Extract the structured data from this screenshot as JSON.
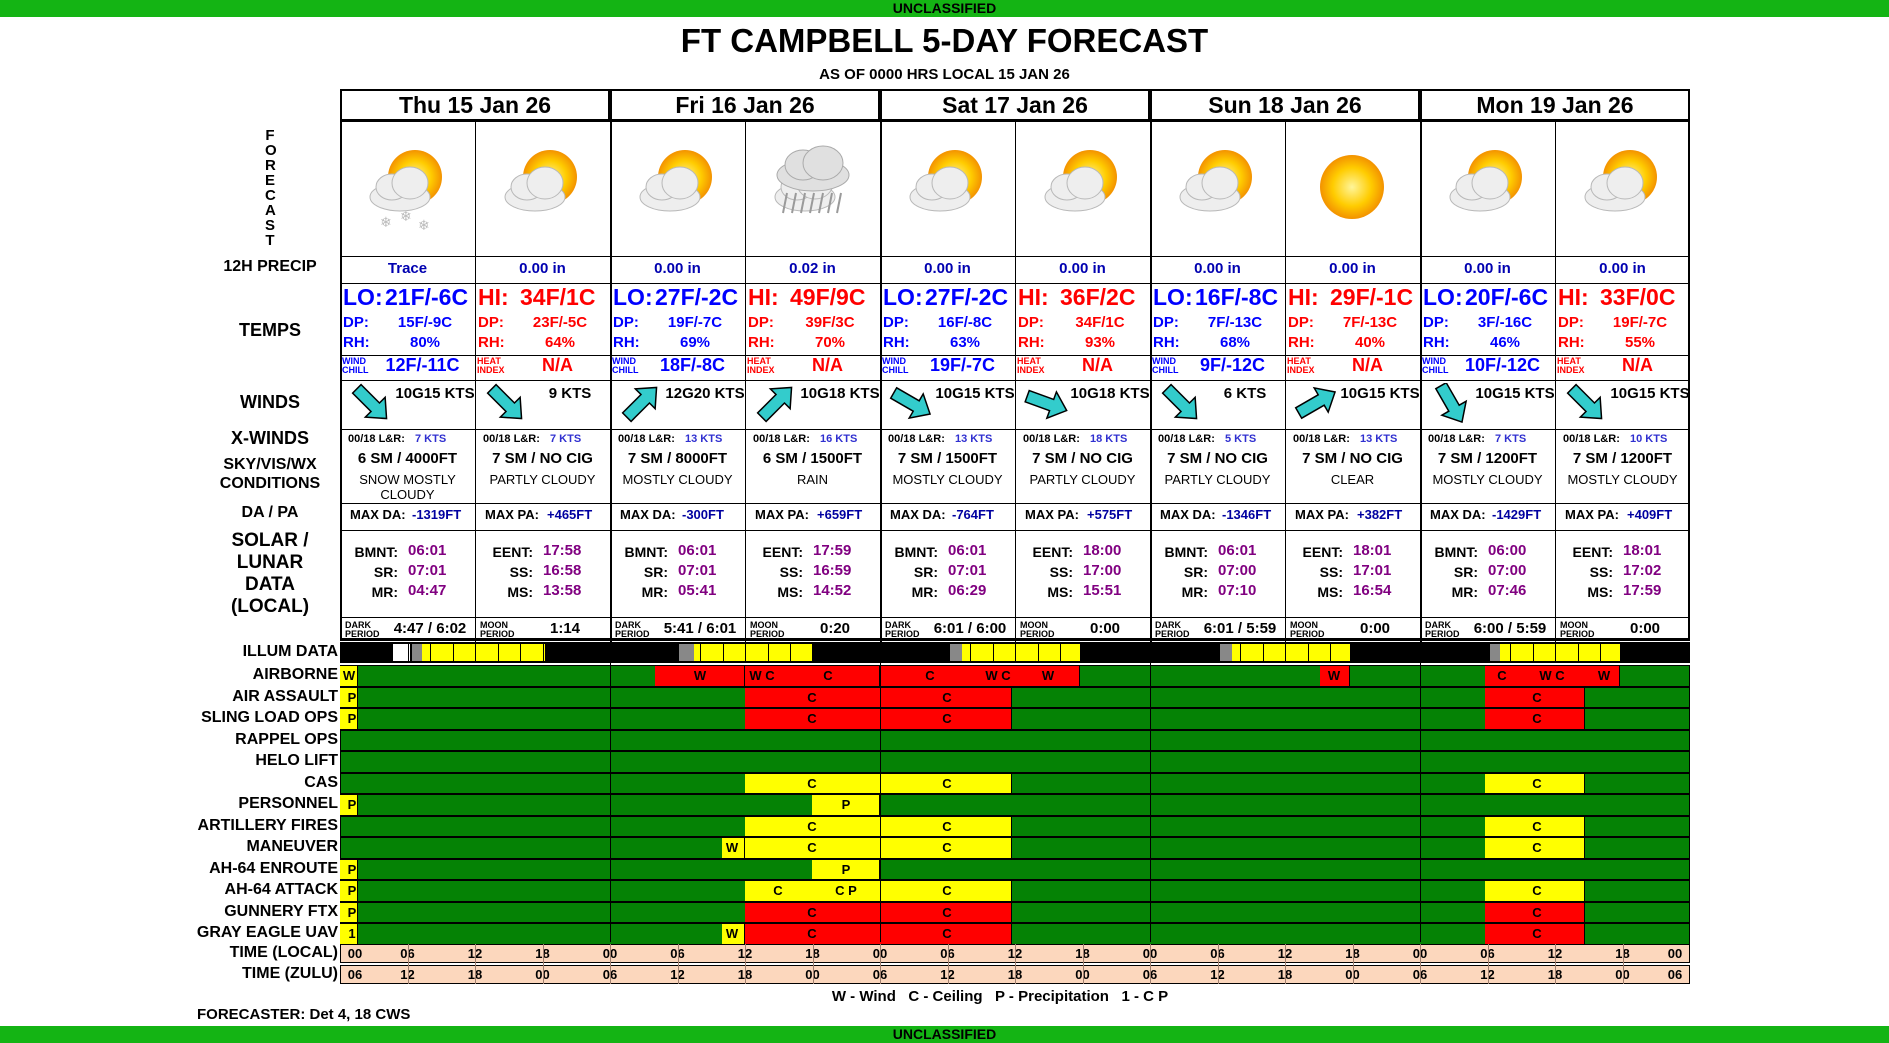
{
  "banner_top": "UNCLASSIFIED",
  "banner_bottom": "UNCLASSIFIED",
  "title": "FT CAMPBELL 5-DAY FORECAST",
  "as_of": "AS OF 0000 HRS LOCAL 15 JAN 26",
  "labels": {
    "forecast": "F O R E C A S T",
    "precip": "12H PRECIP",
    "temps": "TEMPS",
    "winds": "WINDS",
    "xwinds": "X-WINDS",
    "sky1": "SKY/VIS/WX",
    "sky2": "CONDITIONS",
    "dapa": "DA / PA",
    "solar1": "SOLAR /",
    "solar2": "LUNAR",
    "solar3": "DATA",
    "solar4": "(LOCAL)",
    "illum": "ILLUM DATA",
    "time_local": "TIME (LOCAL)",
    "time_zulu": "TIME (ZULU)"
  },
  "days": [
    "Thu 15 Jan 26",
    "Fri 16 Jan 26",
    "Sat 17 Jan 26",
    "Sun 18 Jan 26",
    "Mon 19 Jan 26"
  ],
  "periods": [
    {
      "icon": "snow-partly-cloudy-icon",
      "precip": "Trace",
      "temp_label": "LO:",
      "temp": "21F/-6C",
      "dp": "15F/-9C",
      "rh": "80%",
      "idx_label": "WIND CHILL",
      "idx": "12F/-11C",
      "wind": "10G15 KTS",
      "xwind_label": "00/18 L&R:",
      "xwind": "7 KTS",
      "sky": "6 SM / 4000FT",
      "wx": "SNOW MOSTLY CLOUDY",
      "da_label": "MAX DA:",
      "da": "-1319FT",
      "s1": "BMNT:",
      "v1": "06:01",
      "s2": "SR:",
      "v2": "07:01",
      "s3": "MR:",
      "v3": "04:47",
      "dark_label": "DARK PERIOD",
      "dark": "4:47 / 6:02"
    },
    {
      "icon": "partly-cloudy-icon",
      "precip": "0.00 in",
      "temp_label": "HI:",
      "temp": "34F/1C",
      "dp": "23F/-5C",
      "rh": "64%",
      "idx_label": "HEAT INDEX",
      "idx": "N/A",
      "wind": "9 KTS",
      "xwind_label": "00/18 L&R:",
      "xwind": "7 KTS",
      "sky": "7 SM / NO CIG",
      "wx": "PARTLY CLOUDY",
      "da_label": "MAX PA:",
      "da": "+465FT",
      "s1": "EENT:",
      "v1": "17:58",
      "s2": "SS:",
      "v2": "16:58",
      "s3": "MS:",
      "v3": "13:58",
      "dark_label": "MOON PERIOD",
      "dark": "1:14"
    },
    {
      "icon": "mostly-cloudy-icon",
      "precip": "0.00 in",
      "temp_label": "LO:",
      "temp": "27F/-2C",
      "dp": "19F/-7C",
      "rh": "69%",
      "idx_label": "WIND CHILL",
      "idx": "18F/-8C",
      "wind": "12G20 KTS",
      "xwind_label": "00/18 L&R:",
      "xwind": "13 KTS",
      "sky": "7 SM / 8000FT",
      "wx": "MOSTLY CLOUDY",
      "da_label": "MAX DA:",
      "da": "-300FT",
      "s1": "BMNT:",
      "v1": "06:01",
      "s2": "SR:",
      "v2": "07:01",
      "s3": "MR:",
      "v3": "05:41",
      "dark_label": "DARK PERIOD",
      "dark": "5:41 / 6:01"
    },
    {
      "icon": "rain-icon",
      "precip": "0.02 in",
      "temp_label": "HI:",
      "temp": "49F/9C",
      "dp": "39F/3C",
      "rh": "70%",
      "idx_label": "HEAT INDEX",
      "idx": "N/A",
      "wind": "10G18 KTS",
      "xwind_label": "00/18 L&R:",
      "xwind": "16 KTS",
      "sky": "6 SM / 1500FT",
      "wx": "RAIN",
      "da_label": "MAX PA:",
      "da": "+659FT",
      "s1": "EENT:",
      "v1": "17:59",
      "s2": "SS:",
      "v2": "16:59",
      "s3": "MS:",
      "v3": "14:52",
      "dark_label": "MOON PERIOD",
      "dark": "0:20"
    },
    {
      "icon": "mostly-cloudy-icon",
      "precip": "0.00 in",
      "temp_label": "LO:",
      "temp": "27F/-2C",
      "dp": "16F/-8C",
      "rh": "63%",
      "idx_label": "WIND CHILL",
      "idx": "19F/-7C",
      "wind": "10G15 KTS",
      "xwind_label": "00/18 L&R:",
      "xwind": "13 KTS",
      "sky": "7 SM / 1500FT",
      "wx": "MOSTLY CLOUDY",
      "da_label": "MAX DA:",
      "da": "-764FT",
      "s1": "BMNT:",
      "v1": "06:01",
      "s2": "SR:",
      "v2": "07:01",
      "s3": "MR:",
      "v3": "06:29",
      "dark_label": "DARK PERIOD",
      "dark": "6:01 / 6:00"
    },
    {
      "icon": "partly-cloudy-icon",
      "precip": "0.00 in",
      "temp_label": "HI:",
      "temp": "36F/2C",
      "dp": "34F/1C",
      "rh": "93%",
      "idx_label": "HEAT INDEX",
      "idx": "N/A",
      "wind": "10G18 KTS",
      "xwind_label": "00/18 L&R:",
      "xwind": "18 KTS",
      "sky": "7 SM / NO CIG",
      "wx": "PARTLY CLOUDY",
      "da_label": "MAX PA:",
      "da": "+575FT",
      "s1": "EENT:",
      "v1": "18:00",
      "s2": "SS:",
      "v2": "17:00",
      "s3": "MS:",
      "v3": "15:51",
      "dark_label": "MOON PERIOD",
      "dark": "0:00"
    },
    {
      "icon": "partly-cloudy-icon",
      "precip": "0.00 in",
      "temp_label": "LO:",
      "temp": "16F/-8C",
      "dp": "7F/-13C",
      "rh": "68%",
      "idx_label": "WIND CHILL",
      "idx": "9F/-12C",
      "wind": "6 KTS",
      "xwind_label": "00/18 L&R:",
      "xwind": "5 KTS",
      "sky": "7 SM / NO CIG",
      "wx": "PARTLY CLOUDY",
      "da_label": "MAX DA:",
      "da": "-1346FT",
      "s1": "BMNT:",
      "v1": "06:01",
      "s2": "SR:",
      "v2": "07:00",
      "s3": "MR:",
      "v3": "07:10",
      "dark_label": "DARK PERIOD",
      "dark": "6:01 / 5:59"
    },
    {
      "icon": "sun-icon",
      "precip": "0.00 in",
      "temp_label": "HI:",
      "temp": "29F/-1C",
      "dp": "7F/-13C",
      "rh": "40%",
      "idx_label": "HEAT INDEX",
      "idx": "N/A",
      "wind": "10G15 KTS",
      "xwind_label": "00/18 L&R:",
      "xwind": "13 KTS",
      "sky": "7 SM / NO CIG",
      "wx": "CLEAR",
      "da_label": "MAX PA:",
      "da": "+382FT",
      "s1": "EENT:",
      "v1": "18:01",
      "s2": "SS:",
      "v2": "17:01",
      "s3": "MS:",
      "v3": "16:54",
      "dark_label": "MOON PERIOD",
      "dark": "0:00"
    },
    {
      "icon": "mostly-cloudy-icon",
      "precip": "0.00 in",
      "temp_label": "LO:",
      "temp": "20F/-6C",
      "dp": "3F/-16C",
      "rh": "46%",
      "idx_label": "WIND CHILL",
      "idx": "10F/-12C",
      "wind": "10G15 KTS",
      "xwind_label": "00/18 L&R:",
      "xwind": "7 KTS",
      "sky": "7 SM / 1200FT",
      "wx": "MOSTLY CLOUDY",
      "da_label": "MAX DA:",
      "da": "-1429FT",
      "s1": "BMNT:",
      "v1": "06:00",
      "s2": "SR:",
      "v2": "07:00",
      "s3": "MR:",
      "v3": "07:46",
      "dark_label": "DARK PERIOD",
      "dark": "6:00 / 5:59"
    },
    {
      "icon": "mostly-cloudy-icon",
      "precip": "0.00 in",
      "temp_label": "HI:",
      "temp": "33F/0C",
      "dp": "19F/-7C",
      "rh": "55%",
      "idx_label": "HEAT INDEX",
      "idx": "N/A",
      "wind": "10G15 KTS",
      "xwind_label": "00/18 L&R:",
      "xwind": "10 KTS",
      "sky": "7 SM / 1200FT",
      "wx": "MOSTLY CLOUDY",
      "da_label": "MAX PA:",
      "da": "+409FT",
      "s1": "EENT:",
      "v1": "18:01",
      "s2": "SS:",
      "v2": "17:02",
      "s3": "MS:",
      "v3": "17:59",
      "dark_label": "MOON PERIOD",
      "dark": "0:00"
    }
  ],
  "dp_label": "DP:",
  "rh_label": "RH:",
  "missions": [
    "AIRBORNE",
    "AIR ASSAULT",
    "SLING LOAD OPS",
    "RAPPEL OPS",
    "HELO LIFT",
    "CAS",
    "PERSONNEL",
    "ARTILLERY FIRES",
    "MANEUVER",
    "AH-64 ENROUTE",
    "AH-64 ATTACK",
    "GUNNERY FTX",
    "GRAY EAGLE UAV"
  ],
  "local_ticks": [
    "00",
    "06",
    "12",
    "18",
    "00",
    "06",
    "12",
    "18",
    "00",
    "06",
    "12",
    "18",
    "00",
    "06",
    "12",
    "18",
    "00",
    "06",
    "12",
    "18",
    "00"
  ],
  "zulu_ticks": [
    "06",
    "12",
    "18",
    "00",
    "06",
    "12",
    "18",
    "00",
    "06",
    "12",
    "18",
    "00",
    "06",
    "12",
    "18",
    "00",
    "06",
    "12",
    "18",
    "00",
    "06"
  ],
  "legend": "W - Wind   C - Ceiling   P - Precipitation   1 - C P",
  "forecaster": "FORECASTER: Det 4, 18 CWS",
  "colors": {
    "green": "#058205",
    "red": "#ff0000",
    "yellow": "#ffff00",
    "banner": "#14b414",
    "lo": "#0000ff",
    "hi": "#ff0000"
  }
}
